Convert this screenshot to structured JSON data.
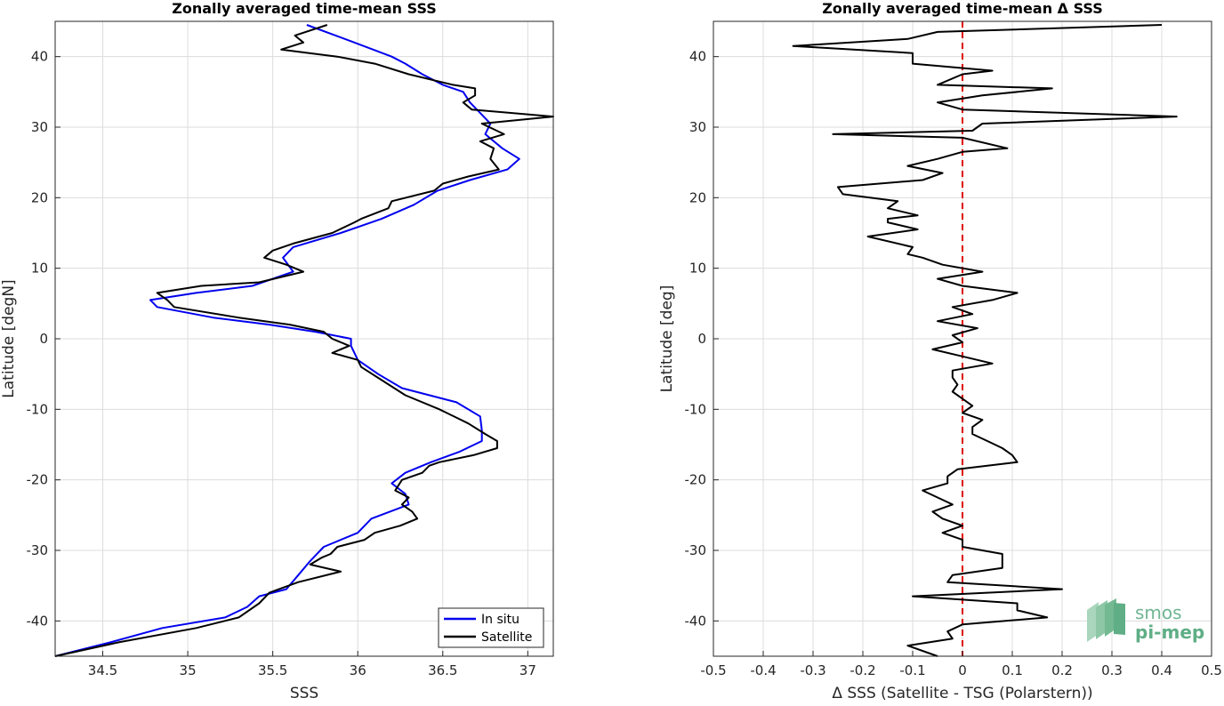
{
  "chart_data": [
    {
      "type": "line",
      "title": "Zonally averaged time-mean SSS",
      "xlabel": "SSS",
      "ylabel": "Latitude [degN]",
      "xlim": [
        34.22,
        37.15
      ],
      "ylim": [
        -45,
        45
      ],
      "grid": true,
      "legend_position": "bottom-right",
      "xticks": [
        34.5,
        35,
        35.5,
        36,
        36.5,
        37
      ],
      "xtick_labels": [
        "34.5",
        "35",
        "35.5",
        "36",
        "36.5",
        "37"
      ],
      "yticks": [
        -40,
        -30,
        -20,
        -10,
        0,
        10,
        20,
        30,
        40
      ],
      "ytick_labels": [
        "-40",
        "-30",
        "-20",
        "-10",
        "0",
        "10",
        "20",
        "30",
        "40"
      ],
      "series": [
        {
          "name": "In situ",
          "color": "#0000ee",
          "lat": [
            44.5,
            42.0,
            40.0,
            39.0,
            37.5,
            36.0,
            35.0,
            33.5,
            32.0,
            30.5,
            29.0,
            27.0,
            25.5,
            24.0,
            22.5,
            21.0,
            19.0,
            17.0,
            15.0,
            13.0,
            11.5,
            9.5,
            7.5,
            6.5,
            5.5,
            4.5,
            3.0,
            2.0,
            1.0,
            0.0,
            -1.0,
            -3.0,
            -5.0,
            -7.0,
            -9.0,
            -11.0,
            -13.0,
            -14.5,
            -16.0,
            -17.5,
            -19.0,
            -20.5,
            -22.0,
            -23.5,
            -25.5,
            -27.5,
            -29.5,
            -31.5,
            -33.5,
            -35.5,
            -36.5,
            -38.0,
            -39.5,
            -41.0,
            -43.0,
            -45.0
          ],
          "x": [
            35.7,
            35.98,
            36.2,
            36.28,
            36.38,
            36.5,
            36.62,
            36.66,
            36.72,
            36.78,
            36.75,
            36.85,
            36.95,
            36.88,
            36.66,
            36.47,
            36.33,
            36.14,
            35.9,
            35.62,
            35.56,
            35.62,
            35.38,
            35.05,
            34.78,
            34.82,
            35.15,
            35.48,
            35.75,
            35.96,
            35.96,
            36.0,
            36.12,
            36.26,
            36.58,
            36.72,
            36.73,
            36.73,
            36.6,
            36.43,
            36.28,
            36.2,
            36.28,
            36.3,
            36.08,
            36.0,
            35.8,
            35.72,
            35.65,
            35.58,
            35.42,
            35.35,
            35.22,
            34.85,
            34.55,
            34.22
          ]
        },
        {
          "name": "Satellite",
          "color": "#000000",
          "lat": [
            44.5,
            43.0,
            42.0,
            41.0,
            40.0,
            39.0,
            37.5,
            36.0,
            35.5,
            34.5,
            33.5,
            32.5,
            31.5,
            30.5,
            29.0,
            28.0,
            27.0,
            25.5,
            24.0,
            23.0,
            22.0,
            21.0,
            19.5,
            18.5,
            17.0,
            16.5,
            15.0,
            13.5,
            12.5,
            11.5,
            10.5,
            9.5,
            8.0,
            7.5,
            6.5,
            5.5,
            4.5,
            3.0,
            2.0,
            1.0,
            0.0,
            -1.0,
            -2.0,
            -3.0,
            -4.0,
            -6.0,
            -8.0,
            -10.0,
            -12.0,
            -13.5,
            -14.5,
            -15.5,
            -16.5,
            -17.5,
            -18.0,
            -19.0,
            -20.0,
            -21.5,
            -22.5,
            -23.5,
            -24.5,
            -25.5,
            -26.5,
            -27.5,
            -28.5,
            -29.5,
            -30.5,
            -31.0,
            -32.0,
            -33.0,
            -34.5,
            -36.0,
            -37.5,
            -39.5,
            -41.0,
            -43.0,
            -45.0
          ],
          "x": [
            35.82,
            35.63,
            35.68,
            35.55,
            35.88,
            36.1,
            36.3,
            36.56,
            36.69,
            36.69,
            36.62,
            36.67,
            37.15,
            36.73,
            36.86,
            36.72,
            36.8,
            36.78,
            36.83,
            36.65,
            36.5,
            36.45,
            36.2,
            36.18,
            36.02,
            35.98,
            35.85,
            35.62,
            35.5,
            35.45,
            35.58,
            35.68,
            35.42,
            35.08,
            34.82,
            34.88,
            34.92,
            35.3,
            35.6,
            35.8,
            35.85,
            35.95,
            35.85,
            36.0,
            36.02,
            36.15,
            36.28,
            36.48,
            36.65,
            36.75,
            36.82,
            36.82,
            36.68,
            36.48,
            36.42,
            36.38,
            36.26,
            36.22,
            36.3,
            36.26,
            36.32,
            36.35,
            36.25,
            36.1,
            36.04,
            35.88,
            35.84,
            35.79,
            35.72,
            35.9,
            35.65,
            35.48,
            35.42,
            35.3,
            35.05,
            34.6,
            34.22
          ]
        }
      ]
    },
    {
      "type": "line",
      "title": "Zonally averaged time-mean Δ SSS",
      "xlabel": "Δ SSS (Satellite - TSG (Polarstern))",
      "ylabel": "Latitude [deg]",
      "xlim": [
        -0.5,
        0.5
      ],
      "ylim": [
        -45,
        45
      ],
      "grid": true,
      "xticks": [
        -0.5,
        -0.4,
        -0.3,
        -0.2,
        -0.1,
        0,
        0.1,
        0.2,
        0.3,
        0.4,
        0.5
      ],
      "xtick_labels": [
        "-0.5",
        "-0.4",
        "-0.3",
        "-0.2",
        "-0.1",
        "0",
        "0.1",
        "0.2",
        "0.3",
        "0.4",
        "0.5"
      ],
      "yticks": [
        -40,
        -30,
        -20,
        -10,
        0,
        10,
        20,
        30,
        40
      ],
      "ytick_labels": [
        "-40",
        "-30",
        "-20",
        "-10",
        "0",
        "10",
        "20",
        "30",
        "40"
      ],
      "reference_line": {
        "x": 0,
        "color": "#dd0000",
        "style": "dashed"
      },
      "series": [
        {
          "color": "#000000",
          "lat": [
            44.5,
            43.5,
            42.5,
            41.5,
            40.5,
            39.0,
            38.0,
            37.5,
            36.0,
            35.5,
            34.5,
            33.5,
            32.5,
            31.5,
            30.5,
            29.5,
            29.0,
            28.5,
            27.0,
            26.5,
            25.5,
            24.5,
            23.5,
            22.5,
            21.5,
            20.5,
            19.5,
            18.5,
            17.5,
            17.0,
            16.5,
            15.5,
            14.5,
            13.0,
            12.0,
            11.5,
            10.5,
            9.5,
            8.5,
            7.5,
            6.5,
            5.5,
            4.5,
            3.5,
            2.5,
            1.5,
            0.5,
            -0.5,
            -1.5,
            -2.5,
            -3.5,
            -4.5,
            -5.5,
            -6.5,
            -7.5,
            -8.5,
            -9.5,
            -10.5,
            -11.5,
            -12.5,
            -13.5,
            -14.5,
            -15.5,
            -16.5,
            -17.5,
            -18.5,
            -19.5,
            -20.5,
            -21.5,
            -22.5,
            -23.5,
            -24.5,
            -25.5,
            -26.5,
            -27.5,
            -28.5,
            -29.5,
            -30.5,
            -31.5,
            -32.5,
            -33.5,
            -34.5,
            -35.5,
            -36.5,
            -37.5,
            -38.5,
            -39.5,
            -40.5,
            -41.5,
            -42.5,
            -43.5,
            -45.0
          ],
          "x": [
            0.4,
            -0.05,
            -0.11,
            -0.34,
            -0.1,
            -0.1,
            0.06,
            0.0,
            -0.05,
            0.18,
            0.04,
            -0.05,
            0.0,
            0.43,
            0.04,
            0.02,
            -0.26,
            0.0,
            0.09,
            0.0,
            -0.05,
            -0.11,
            -0.04,
            -0.08,
            -0.25,
            -0.24,
            -0.13,
            -0.15,
            -0.09,
            -0.15,
            -0.15,
            -0.09,
            -0.19,
            -0.1,
            -0.11,
            -0.08,
            -0.04,
            0.04,
            -0.05,
            0.0,
            0.11,
            0.06,
            -0.02,
            0.02,
            -0.05,
            0.03,
            -0.02,
            0.0,
            -0.06,
            0.0,
            0.06,
            -0.02,
            -0.02,
            -0.01,
            -0.02,
            0.0,
            0.02,
            0.0,
            0.04,
            0.02,
            0.02,
            0.05,
            0.08,
            0.1,
            0.11,
            -0.01,
            -0.03,
            -0.03,
            -0.08,
            -0.05,
            -0.02,
            -0.06,
            -0.04,
            0.0,
            -0.04,
            0.0,
            0.0,
            0.08,
            0.08,
            0.08,
            -0.02,
            -0.03,
            0.2,
            -0.1,
            0.11,
            0.11,
            0.17,
            0.0,
            -0.03,
            -0.02,
            -0.11,
            -0.05
          ]
        }
      ]
    }
  ],
  "watermark": {
    "line1": "smos",
    "line2": "pi-mep"
  },
  "colors": {
    "in_situ": "#0000ee",
    "satellite": "#000000",
    "zero_line": "#dd0000",
    "grid": "#dcdcdc",
    "logo": "#5fae86"
  }
}
